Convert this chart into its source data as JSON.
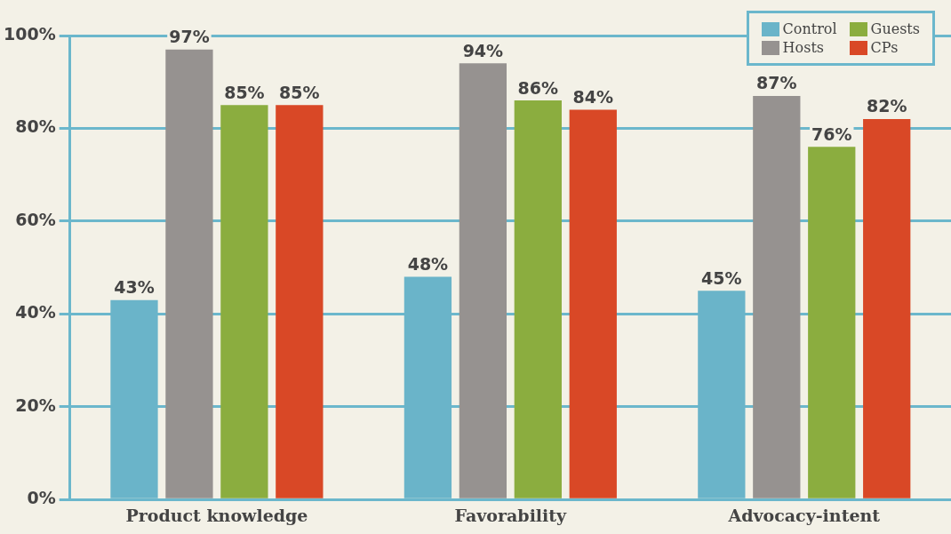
{
  "chart_data": {
    "type": "bar",
    "categories": [
      "Product knowledge",
      "Favorability",
      "Advocacy-intent"
    ],
    "series": [
      {
        "name": "Control",
        "color": "#6ab4c9",
        "values": [
          43,
          48,
          45
        ],
        "value_labels": [
          "43%",
          "48%",
          "45%"
        ]
      },
      {
        "name": "Hosts",
        "color": "#969290",
        "values": [
          97,
          94,
          87
        ],
        "value_labels": [
          "97%",
          "94%",
          "87%"
        ]
      },
      {
        "name": "Guests",
        "color": "#8bad3f",
        "values": [
          85,
          86,
          76
        ],
        "value_labels": [
          "85%",
          "86%",
          "76%"
        ]
      },
      {
        "name": "CPs",
        "color": "#d94826",
        "values": [
          85,
          84,
          82
        ],
        "value_labels": [
          "85%",
          "84%",
          "82%"
        ]
      }
    ],
    "ylim": [
      0,
      100
    ],
    "yticks": [
      {
        "value": 0,
        "label": "0%"
      },
      {
        "value": 20,
        "label": "20%"
      },
      {
        "value": 40,
        "label": "40%"
      },
      {
        "value": 60,
        "label": "60%"
      },
      {
        "value": 80,
        "label": "80%"
      },
      {
        "value": 100,
        "label": "100%"
      }
    ],
    "grid": "y",
    "legend": "top right"
  }
}
